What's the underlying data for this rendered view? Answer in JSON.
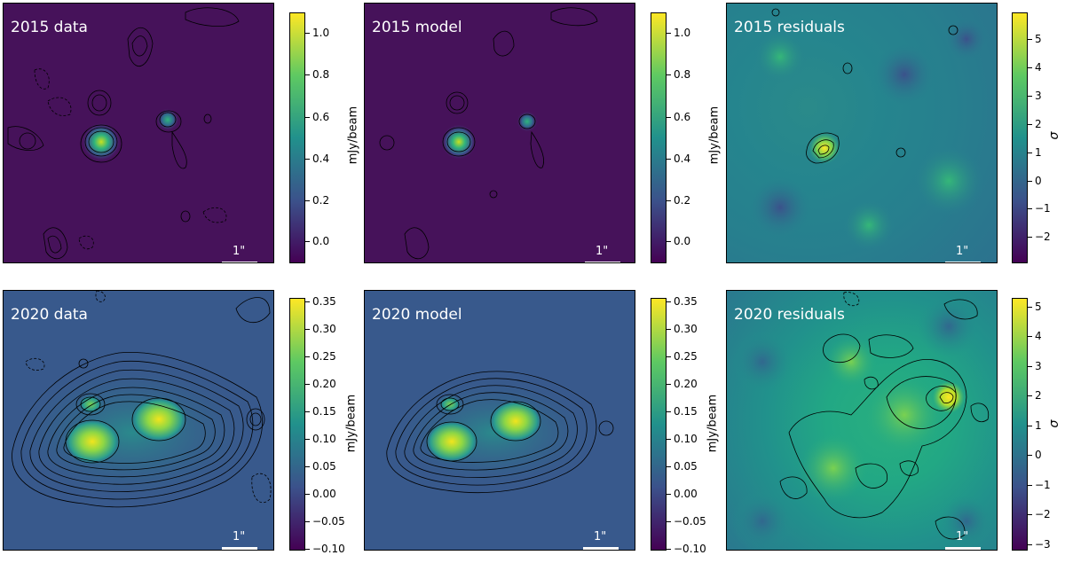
{
  "chart_data": [
    {
      "type": "heatmap",
      "title": "2015 data",
      "scalebar_label": "1\"",
      "colorbar": {
        "label": "mJy/beam",
        "ticks": [
          "1.0",
          "0.8",
          "0.6",
          "0.4",
          "0.2",
          "0.0"
        ],
        "range": [
          -0.1,
          1.1
        ]
      },
      "colormap": "viridis"
    },
    {
      "type": "heatmap",
      "title": "2015 model",
      "scalebar_label": "1\"",
      "colorbar": {
        "label": "mJy/beam",
        "ticks": [
          "1.0",
          "0.8",
          "0.6",
          "0.4",
          "0.2",
          "0.0"
        ],
        "range": [
          -0.1,
          1.1
        ]
      },
      "colormap": "viridis"
    },
    {
      "type": "heatmap",
      "title": "2015 residuals",
      "scalebar_label": "1\"",
      "colorbar": {
        "label": "σ",
        "ticks": [
          "5",
          "4",
          "3",
          "2",
          "1",
          "0",
          "−1",
          "−2"
        ],
        "range": [
          -3,
          5.9
        ]
      },
      "colormap": "viridis"
    },
    {
      "type": "heatmap",
      "title": "2020 data",
      "scalebar_label": "1\"",
      "colorbar": {
        "label": "mJy/beam",
        "ticks": [
          "0.35",
          "0.30",
          "0.25",
          "0.20",
          "0.15",
          "0.10",
          "0.05",
          "0.00",
          "−0.05",
          "−0.10"
        ],
        "range": [
          -0.1,
          0.35
        ]
      },
      "colormap": "viridis"
    },
    {
      "type": "heatmap",
      "title": "2020 model",
      "scalebar_label": "1\"",
      "colorbar": {
        "label": "mJy/beam",
        "ticks": [
          "0.35",
          "0.30",
          "0.25",
          "0.20",
          "0.15",
          "0.10",
          "0.05",
          "0.00",
          "−0.05",
          "−0.10"
        ],
        "range": [
          -0.1,
          0.35
        ]
      },
      "colormap": "viridis"
    },
    {
      "type": "heatmap",
      "title": "2020 residuals",
      "scalebar_label": "1\"",
      "colorbar": {
        "label": "σ",
        "ticks": [
          "5",
          "4",
          "3",
          "2",
          "1",
          "0",
          "−1",
          "−2",
          "−3"
        ],
        "range": [
          -3.3,
          5.2
        ]
      },
      "colormap": "viridis"
    }
  ]
}
